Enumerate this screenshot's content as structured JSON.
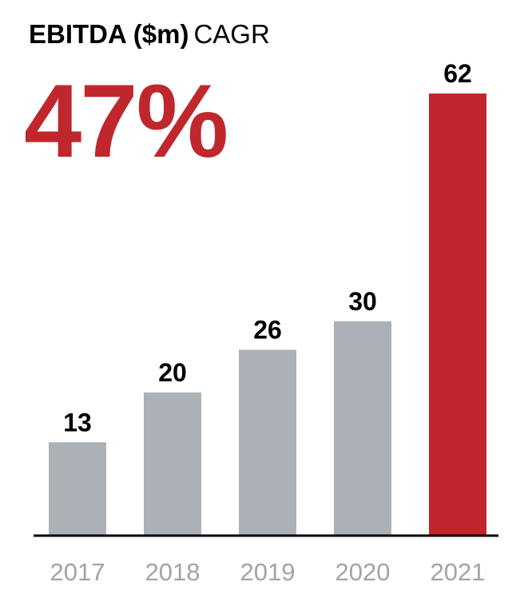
{
  "header": {
    "title": "EBITDA ($m)",
    "subtitle": "CAGR",
    "cagr": "47%"
  },
  "colors": {
    "accent": "#c0272d",
    "bar": "#acb1b8",
    "axis_label": "#a0a4aa",
    "text": "#000000"
  },
  "chart_data": {
    "type": "bar",
    "title": "EBITDA ($m)",
    "subtitle": "CAGR 47%",
    "categories": [
      "2017",
      "2018",
      "2019",
      "2020",
      "2021"
    ],
    "values": [
      13,
      20,
      26,
      30,
      62
    ],
    "highlight_index": 4,
    "data_labels": [
      "13",
      "20",
      "26",
      "30",
      "62"
    ],
    "ylim": [
      0,
      62
    ],
    "grid": false,
    "legend": "none"
  }
}
